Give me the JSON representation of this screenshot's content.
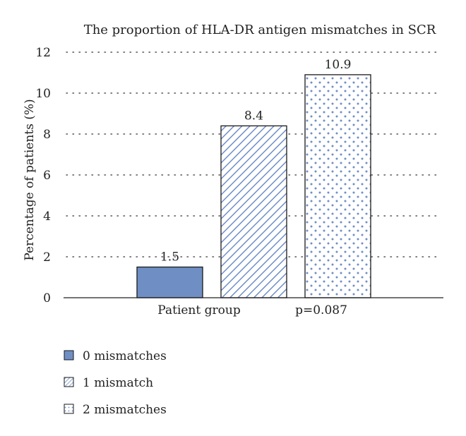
{
  "chart_data": {
    "type": "bar",
    "title": "The proportion of HLA-DR antigen mismatches in SCR",
    "xlabel": "Patient group",
    "ylabel": "Percentage of patients (%)",
    "annotation": "p=0.087",
    "ylim": [
      0,
      12
    ],
    "yticks": [
      0,
      2,
      4,
      6,
      8,
      10,
      12
    ],
    "grid": true,
    "legend_position": "bottom-left",
    "series": [
      {
        "name": "0 mismatches",
        "value": 1.5,
        "label": "1.5",
        "pattern": "solid",
        "color": "#6f8fc4"
      },
      {
        "name": "1 mismatch",
        "value": 8.4,
        "label": "8.4",
        "pattern": "diagonal-hatch",
        "color": "#5b7fc0"
      },
      {
        "name": "2 mismatches",
        "value": 10.9,
        "label": "10.9",
        "pattern": "dots",
        "color": "#5b7fc0"
      }
    ]
  }
}
